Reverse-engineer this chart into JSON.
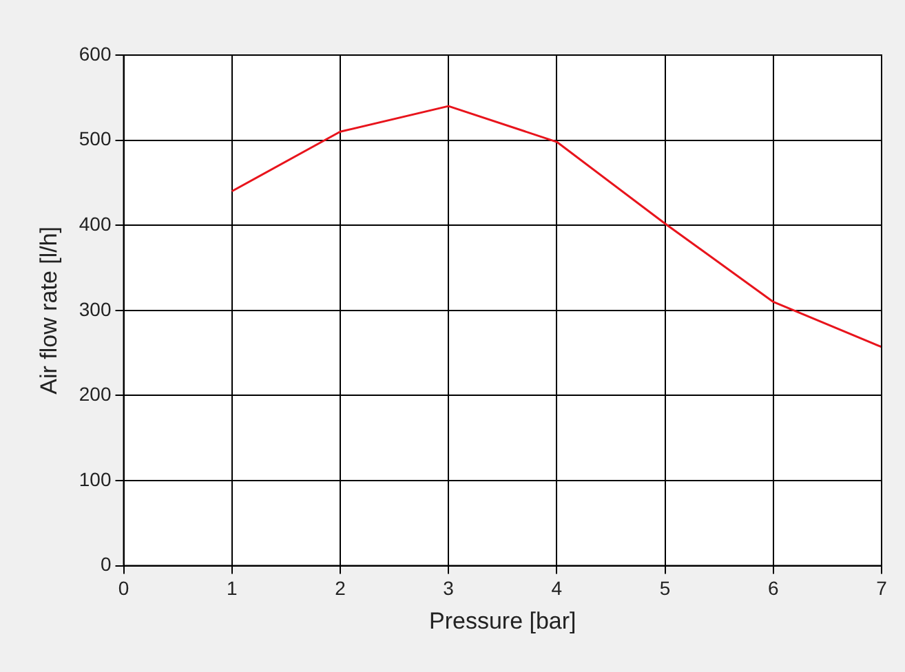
{
  "chart_data": {
    "type": "line",
    "xlabel": "Pressure [bar]",
    "ylabel": "Air flow rate [l/h]",
    "x": [
      1,
      2,
      3,
      4,
      5,
      6,
      7
    ],
    "series": [
      {
        "color": "#e8141c",
        "values": [
          440,
          510,
          540,
          498,
          402,
          310,
          257
        ]
      }
    ],
    "xlim": [
      0,
      7
    ],
    "xticks": [
      0,
      1,
      2,
      3,
      4,
      5,
      6,
      7
    ],
    "ylim": [
      0,
      600
    ],
    "yticks": [
      0,
      100,
      200,
      300,
      400,
      500,
      600
    ],
    "grid": true,
    "marker": "none",
    "line_style": "solid"
  }
}
